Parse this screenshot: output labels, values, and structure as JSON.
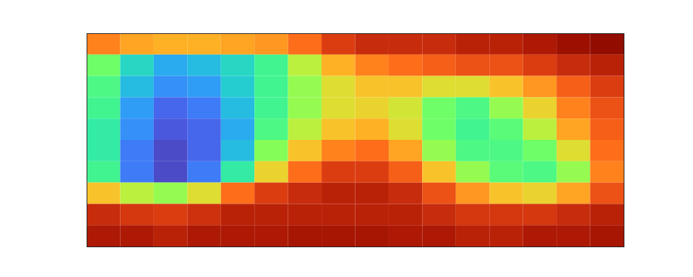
{
  "chart_data": {
    "type": "heatmap",
    "xlim": [
      0,
      16
    ],
    "ylim": [
      0,
      10
    ],
    "tick_labels": false,
    "color_range": [
      0,
      1
    ],
    "cells": [
      [
        0.75,
        0.7,
        0.68,
        0.68,
        0.7,
        0.72,
        0.78,
        0.85,
        0.88,
        0.88,
        0.88,
        0.9,
        0.9,
        0.92,
        0.95,
        0.98
      ],
      [
        0.45,
        0.3,
        0.22,
        0.25,
        0.3,
        0.38,
        0.55,
        0.68,
        0.75,
        0.78,
        0.8,
        0.82,
        0.82,
        0.85,
        0.88,
        0.9
      ],
      [
        0.4,
        0.25,
        0.18,
        0.2,
        0.28,
        0.38,
        0.5,
        0.6,
        0.65,
        0.65,
        0.6,
        0.6,
        0.65,
        0.72,
        0.8,
        0.85
      ],
      [
        0.38,
        0.2,
        0.12,
        0.15,
        0.25,
        0.38,
        0.5,
        0.6,
        0.62,
        0.58,
        0.45,
        0.4,
        0.5,
        0.62,
        0.75,
        0.82
      ],
      [
        0.35,
        0.18,
        0.1,
        0.12,
        0.22,
        0.4,
        0.55,
        0.65,
        0.68,
        0.6,
        0.45,
        0.38,
        0.42,
        0.55,
        0.7,
        0.8
      ],
      [
        0.35,
        0.15,
        0.08,
        0.12,
        0.25,
        0.48,
        0.65,
        0.75,
        0.78,
        0.7,
        0.5,
        0.4,
        0.4,
        0.45,
        0.6,
        0.78
      ],
      [
        0.38,
        0.15,
        0.08,
        0.15,
        0.35,
        0.62,
        0.78,
        0.85,
        0.85,
        0.8,
        0.65,
        0.5,
        0.42,
        0.4,
        0.5,
        0.75
      ],
      [
        0.65,
        0.55,
        0.5,
        0.6,
        0.78,
        0.85,
        0.88,
        0.9,
        0.9,
        0.88,
        0.82,
        0.72,
        0.65,
        0.62,
        0.7,
        0.82
      ],
      [
        0.88,
        0.86,
        0.85,
        0.87,
        0.9,
        0.9,
        0.9,
        0.9,
        0.9,
        0.9,
        0.88,
        0.86,
        0.86,
        0.86,
        0.88,
        0.9
      ],
      [
        0.92,
        0.92,
        0.9,
        0.92,
        0.92,
        0.92,
        0.93,
        0.93,
        0.93,
        0.92,
        0.92,
        0.9,
        0.9,
        0.92,
        0.92,
        0.93
      ]
    ]
  }
}
